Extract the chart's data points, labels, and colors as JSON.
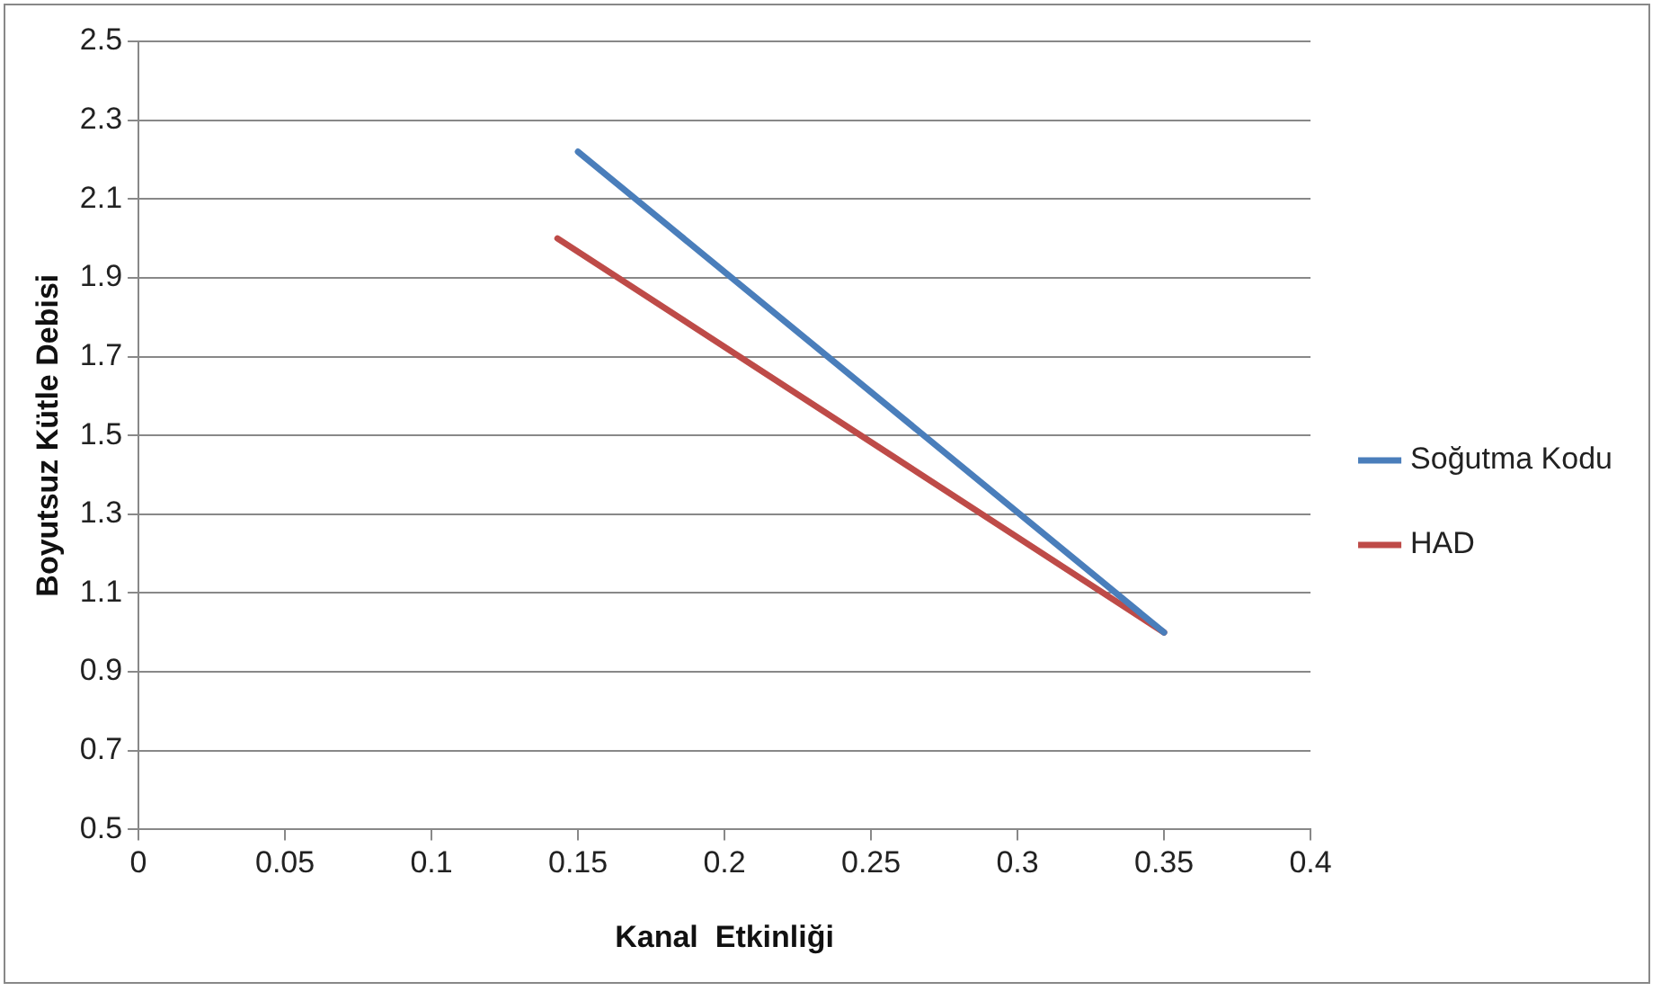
{
  "chart_data": {
    "type": "line",
    "xlabel": "Kanal  Etkinliği",
    "ylabel": "Boyutsuz Kütle Debisi",
    "xlim": [
      0,
      0.4
    ],
    "xticks": [
      0,
      0.05,
      0.1,
      0.15,
      0.2,
      0.25,
      0.3,
      0.35,
      0.4
    ],
    "ylim": [
      0.5,
      2.5
    ],
    "yticks": [
      0.5,
      0.7,
      0.9,
      1.1,
      1.3,
      1.5,
      1.7,
      1.9,
      2.1,
      2.3,
      2.5
    ],
    "grid": "y",
    "legend": "right",
    "marker": "none",
    "line_style": "solid",
    "series": [
      {
        "name": "Soğutma Kodu",
        "color": "#4a7ebb",
        "x": [
          0.15,
          0.35
        ],
        "values": [
          2.22,
          1.0
        ]
      },
      {
        "name": "HAD",
        "color": "#be4b48",
        "x": [
          0.143,
          0.35
        ],
        "values": [
          2.0,
          1.0
        ]
      }
    ]
  }
}
